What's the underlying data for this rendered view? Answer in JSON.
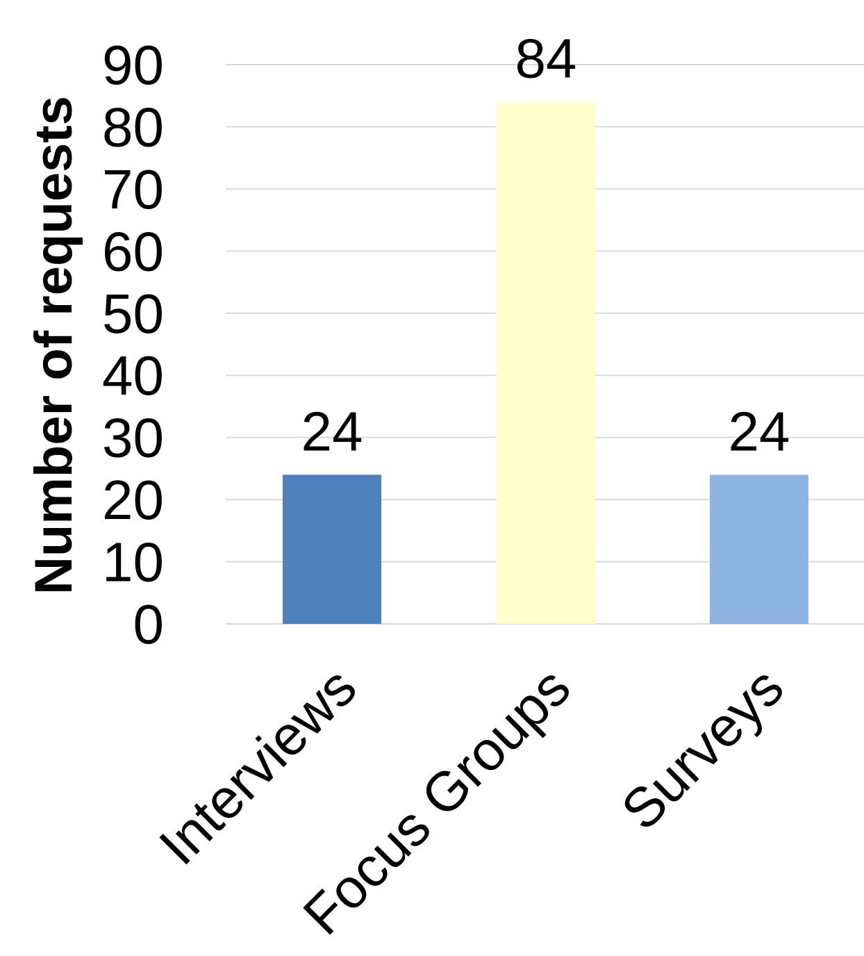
{
  "chart_data": {
    "type": "bar",
    "title": "",
    "xlabel": "",
    "ylabel": "Number of requests",
    "categories": [
      "Interviews",
      "Focus Groups",
      "Surveys"
    ],
    "values": [
      24,
      84,
      24
    ],
    "data_labels": [
      "24",
      "84",
      "24"
    ],
    "colors": [
      "#4f81bd",
      "#ffffcc",
      "#8db3e2"
    ],
    "ylim": [
      0,
      90
    ],
    "yticks": [
      0,
      10,
      20,
      30,
      40,
      50,
      60,
      70,
      80,
      90
    ],
    "grid": true,
    "legend": "none",
    "x_tick_rotation": -45
  }
}
